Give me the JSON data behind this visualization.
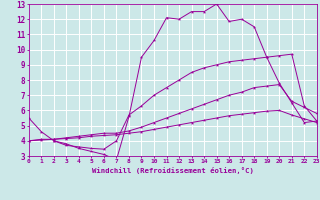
{
  "xlabel": "Windchill (Refroidissement éolien,°C)",
  "bg_color": "#cce8e8",
  "line_color": "#990099",
  "grid_color": "#ffffff",
  "xlim": [
    0,
    23
  ],
  "ylim": [
    3,
    13
  ],
  "xticks": [
    0,
    1,
    2,
    3,
    4,
    5,
    6,
    7,
    8,
    9,
    10,
    11,
    12,
    13,
    14,
    15,
    16,
    17,
    18,
    19,
    20,
    21,
    22,
    23
  ],
  "yticks": [
    3,
    4,
    5,
    6,
    7,
    8,
    9,
    10,
    11,
    12,
    13
  ],
  "lines": [
    {
      "x": [
        0,
        1,
        2,
        3,
        4,
        5,
        6,
        7,
        8,
        9,
        10,
        11,
        12,
        13,
        14,
        15,
        16,
        17,
        18,
        19,
        20,
        21,
        22,
        23
      ],
      "y": [
        5.5,
        4.6,
        4.0,
        3.8,
        3.5,
        3.3,
        3.1,
        2.75,
        5.6,
        9.5,
        10.6,
        12.1,
        12.0,
        12.5,
        12.5,
        13.0,
        11.85,
        12.0,
        11.5,
        9.5,
        7.8,
        6.5,
        5.2,
        5.3
      ]
    },
    {
      "x": [
        2,
        3,
        4,
        5,
        6,
        7,
        8,
        9,
        10,
        11,
        12,
        13,
        14,
        15,
        16,
        17,
        18,
        19,
        20,
        21,
        22,
        23
      ],
      "y": [
        4.0,
        3.7,
        3.6,
        3.5,
        3.45,
        4.0,
        5.7,
        6.3,
        7.0,
        7.5,
        8.0,
        8.5,
        8.8,
        9.0,
        9.2,
        9.3,
        9.4,
        9.5,
        9.6,
        9.7,
        6.3,
        5.3
      ]
    },
    {
      "x": [
        0,
        1,
        2,
        3,
        4,
        5,
        6,
        7,
        8,
        9,
        10,
        11,
        12,
        13,
        14,
        15,
        16,
        17,
        18,
        19,
        20,
        21,
        22,
        23
      ],
      "y": [
        4.0,
        4.1,
        4.1,
        4.2,
        4.3,
        4.4,
        4.5,
        4.5,
        4.65,
        4.9,
        5.2,
        5.5,
        5.8,
        6.1,
        6.4,
        6.7,
        7.0,
        7.2,
        7.5,
        7.6,
        7.7,
        6.6,
        6.2,
        5.8
      ]
    },
    {
      "x": [
        0,
        1,
        2,
        3,
        4,
        5,
        6,
        7,
        8,
        9,
        10,
        11,
        12,
        13,
        14,
        15,
        16,
        17,
        18,
        19,
        20,
        21,
        22,
        23
      ],
      "y": [
        4.0,
        4.05,
        4.1,
        4.15,
        4.2,
        4.3,
        4.35,
        4.4,
        4.5,
        4.6,
        4.75,
        4.9,
        5.05,
        5.2,
        5.35,
        5.5,
        5.65,
        5.75,
        5.85,
        5.95,
        6.0,
        5.7,
        5.45,
        5.2
      ]
    }
  ]
}
